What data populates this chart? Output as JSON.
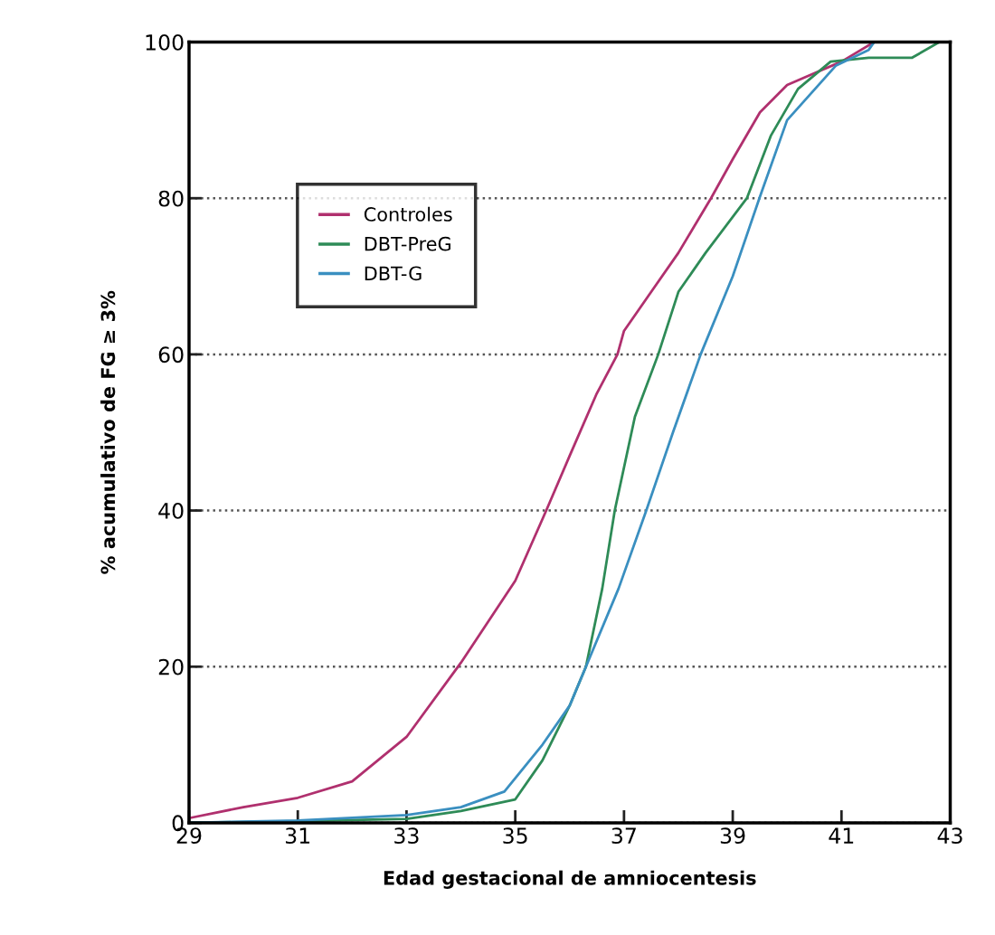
{
  "chart_data": {
    "type": "line",
    "xlabel": "Edad gestacional de amniocentesis",
    "ylabel": "% acumulativo de FG ≥ 3%",
    "xlim": [
      29,
      43
    ],
    "xticks": [
      29,
      31,
      33,
      35,
      37,
      39,
      41,
      43
    ],
    "ylim": [
      0,
      100
    ],
    "yticks": [
      0,
      20,
      40,
      60,
      80,
      100
    ],
    "grid": "y",
    "legend": "top left",
    "marker": "none",
    "line_style": "solid",
    "series": [
      {
        "name": "Controles",
        "color": "#b0306e",
        "x": [
          29,
          30,
          31,
          32,
          33,
          34,
          35,
          35.57,
          36,
          36.5,
          36.88,
          37,
          37.5,
          38,
          38.6,
          39,
          39.5,
          40,
          40.5,
          41,
          41.6
        ],
        "values": [
          0.6,
          2,
          3.2,
          5.3,
          11,
          20.5,
          31,
          40,
          47,
          55,
          60,
          63,
          68,
          73,
          80,
          85,
          91,
          94.5,
          96,
          97.5,
          100
        ]
      },
      {
        "name": "DBT-PreG",
        "color": "#2e8b57",
        "x": [
          29,
          31,
          33,
          34,
          35,
          35.5,
          36,
          36.3,
          36.6,
          36.83,
          37.2,
          37.63,
          38,
          38.5,
          39.26,
          39.7,
          40.2,
          40.8,
          41.5,
          42.3,
          42.8
        ],
        "values": [
          0,
          0.2,
          0.5,
          1.5,
          3,
          8,
          15,
          20,
          30,
          40,
          52,
          60,
          68,
          73,
          80,
          88,
          94,
          97.5,
          98,
          98,
          100
        ]
      },
      {
        "name": "DBT-G",
        "color": "#3a8fc0",
        "x": [
          29,
          31,
          33,
          34,
          34.8,
          35.5,
          36,
          36.3,
          36.9,
          37.41,
          37.9,
          38.41,
          39,
          39.49,
          40,
          40.9,
          41.5,
          41.6
        ],
        "values": [
          0,
          0.3,
          1,
          2,
          4,
          10,
          15,
          20,
          30,
          40,
          50,
          60,
          70,
          80,
          90,
          97,
          99,
          100
        ]
      }
    ]
  }
}
